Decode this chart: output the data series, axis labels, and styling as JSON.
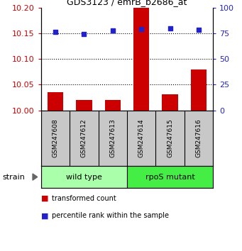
{
  "title": "GDS3123 / emrB_b2686_at",
  "samples": [
    "GSM247608",
    "GSM247612",
    "GSM247613",
    "GSM247614",
    "GSM247615",
    "GSM247616"
  ],
  "group_labels": [
    "wild type",
    "rpoS mutant"
  ],
  "group_colors": [
    "#aaffaa",
    "#44ee44"
  ],
  "bar_values": [
    10.035,
    10.02,
    10.02,
    10.2,
    10.032,
    10.08
  ],
  "dot_values": [
    10.153,
    10.148,
    10.155,
    10.158,
    10.16,
    10.157
  ],
  "bar_color": "#cc0000",
  "dot_color": "#2222cc",
  "ylim_left": [
    10.0,
    10.2
  ],
  "yticks_left": [
    10.0,
    10.05,
    10.1,
    10.15,
    10.2
  ],
  "ylim_right": [
    0,
    100
  ],
  "yticks_right": [
    0,
    25,
    50,
    75,
    100
  ],
  "hlines": [
    10.05,
    10.1,
    10.15
  ],
  "bar_bottom": 10.0,
  "background_color": "#ffffff"
}
